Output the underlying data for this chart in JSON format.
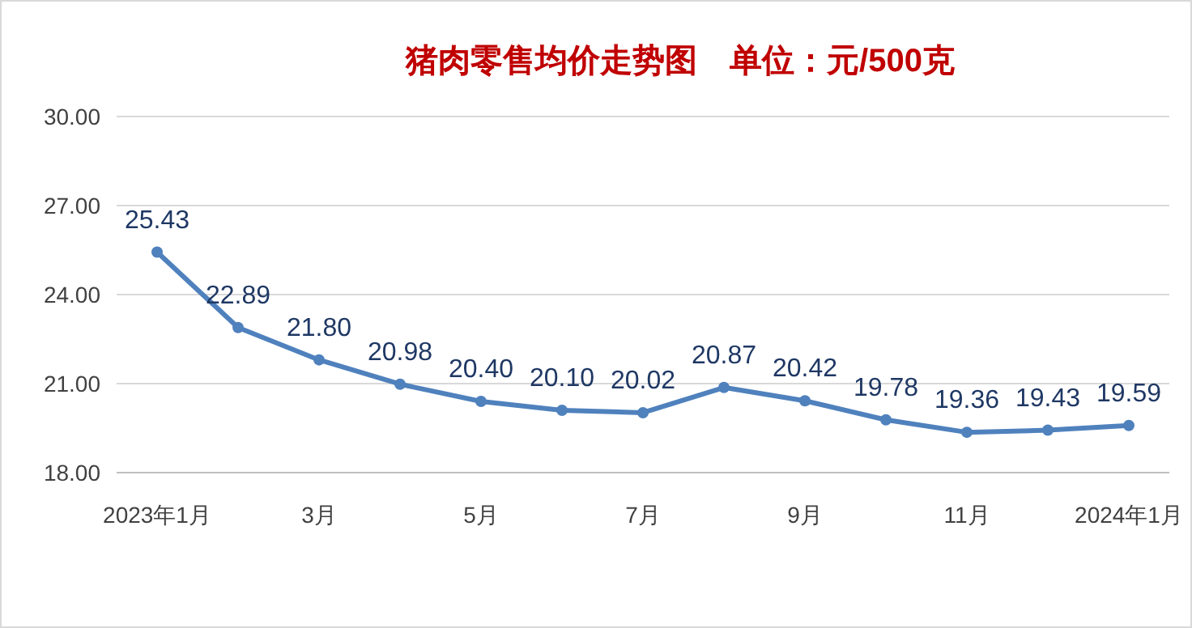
{
  "chart_data": {
    "type": "line",
    "title": "猪肉零售均价走势图　单位：元/500克",
    "categories": [
      "2023年1月",
      null,
      "3月",
      null,
      "5月",
      null,
      "7月",
      null,
      "9月",
      null,
      "11月",
      null,
      "2024年1月"
    ],
    "series": [
      {
        "color": "#4f81bd",
        "values": [
          25.43,
          22.89,
          21.8,
          20.98,
          20.4,
          20.1,
          20.02,
          20.87,
          20.42,
          19.78,
          19.36,
          19.43,
          19.59
        ],
        "value_labels": [
          "25.43",
          "22.89",
          "21.80",
          "20.98",
          "20.40",
          "20.10",
          "20.02",
          "20.87",
          "20.42",
          "19.78",
          "19.36",
          "19.43",
          "19.59"
        ]
      }
    ],
    "ylim": [
      18,
      30
    ],
    "yticks": [
      {
        "value": 18,
        "label": "18.00"
      },
      {
        "value": 21,
        "label": "21.00"
      },
      {
        "value": 24,
        "label": "24.00"
      },
      {
        "value": 27,
        "label": "27.00"
      },
      {
        "value": 30,
        "label": "30.00"
      }
    ],
    "grid": "y",
    "marker": "circle",
    "line_style": "solid"
  }
}
